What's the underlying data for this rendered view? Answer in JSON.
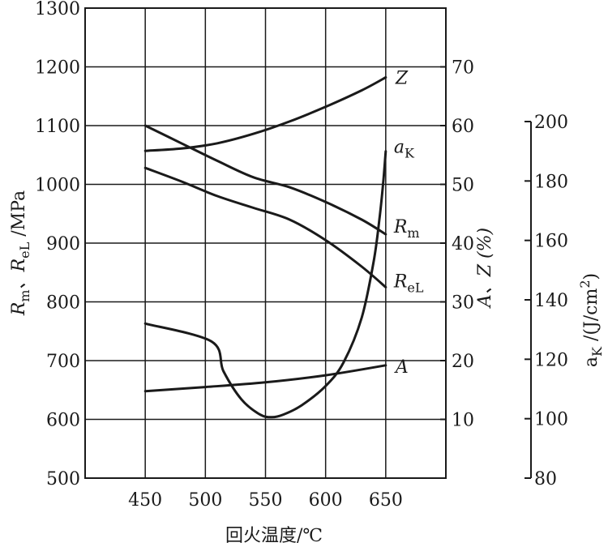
{
  "chart_data": {
    "type": "line",
    "xlabel": "回火温度/℃",
    "x_ticks": [
      450,
      500,
      550,
      600,
      650
    ],
    "xlim": [
      400,
      700
    ],
    "left_axis": {
      "label_parts": [
        "R",
        "m",
        "、R",
        "eL",
        " /MPa"
      ],
      "ylim": [
        500,
        1300
      ],
      "ticks": [
        500,
        600,
        700,
        800,
        900,
        1000,
        1100,
        1200,
        1300
      ]
    },
    "mid_axis": {
      "label": "A、Z (%)",
      "ylim": [
        0,
        80
      ],
      "ticks": [
        10,
        20,
        30,
        40,
        50,
        60,
        70
      ]
    },
    "right_axis": {
      "label_parts": [
        "a",
        "K",
        " /(J/cm",
        "2",
        ")"
      ],
      "ylim": [
        80,
        200
      ],
      "ticks": [
        80,
        100,
        120,
        140,
        160,
        180,
        200
      ]
    },
    "grid": "vertical",
    "series": [
      {
        "name": "Z",
        "name_sub": "",
        "axis": "mid",
        "x": [
          450,
          480,
          510,
          540,
          570,
          600,
          630,
          650
        ],
        "y": [
          55.7,
          56.1,
          57.0,
          58.6,
          60.7,
          63.2,
          66.0,
          68.2
        ]
      },
      {
        "name": "a",
        "name_sub": "K",
        "axis": "right",
        "x": [
          450,
          505,
          515,
          530,
          545,
          555,
          565,
          580,
          600,
          615,
          630,
          640,
          645,
          648,
          650
        ],
        "y": [
          132,
          126,
          116,
          106.5,
          101.5,
          100.5,
          101.4,
          104.5,
          111,
          119,
          134,
          153,
          168,
          180,
          190
        ]
      },
      {
        "name": "R",
        "name_sub": "m",
        "axis": "left",
        "x": [
          450,
          480,
          510,
          540,
          570,
          600,
          630,
          650
        ],
        "y": [
          1100,
          1070,
          1040,
          1012,
          995,
          970,
          940,
          915
        ]
      },
      {
        "name": "R",
        "name_sub": "eL",
        "axis": "left",
        "x": [
          450,
          480,
          510,
          540,
          570,
          600,
          630,
          650
        ],
        "y": [
          1028,
          1005,
          980,
          960,
          940,
          905,
          860,
          825
        ]
      },
      {
        "name": "A",
        "name_sub": "",
        "axis": "mid",
        "x": [
          450,
          500,
          550,
          600,
          650
        ],
        "y": [
          14.8,
          15.5,
          16.3,
          17.5,
          19.2
        ]
      }
    ]
  }
}
